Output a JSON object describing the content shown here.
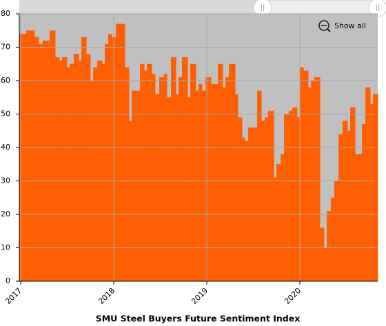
{
  "chart_data": {
    "type": "step-area",
    "title": "SMU Steel Buyers Future Sentiment Index",
    "reset_zoom_label": "Show all",
    "color": "#ff5f00",
    "plot_background": "#c0c0c0",
    "grid": true,
    "xlim": [
      2016.985,
      2020.837
    ],
    "xticks": [
      2017,
      2018,
      2019,
      2020
    ],
    "ylim": [
      0,
      80
    ],
    "yticks": [
      0,
      10,
      20,
      30,
      40,
      50,
      60,
      70,
      80
    ],
    "x": [
      2016.985,
      2017.059,
      2017.148,
      2017.193,
      2017.237,
      2017.311,
      2017.37,
      2017.415,
      2017.444,
      2017.496,
      2017.526,
      2017.57,
      2017.622,
      2017.652,
      2017.704,
      2017.748,
      2017.778,
      2017.822,
      2017.874,
      2017.904,
      2017.941,
      2017.978,
      2018.022,
      2018.119,
      2018.163,
      2018.193,
      2018.281,
      2018.326,
      2018.356,
      2018.407,
      2018.444,
      2018.489,
      2018.541,
      2018.57,
      2018.615,
      2018.667,
      2018.696,
      2018.733,
      2018.793,
      2018.822,
      2018.881,
      2018.911,
      2018.948,
      2018.985,
      2019.044,
      2019.119,
      2019.17,
      2019.2,
      2019.237,
      2019.304,
      2019.333,
      2019.378,
      2019.407,
      2019.444,
      2019.541,
      2019.585,
      2019.622,
      2019.659,
      2019.719,
      2019.748,
      2019.793,
      2019.83,
      2019.881,
      2019.919,
      2019.97,
      2020.0,
      2020.037,
      2020.089,
      2020.119,
      2020.156,
      2020.215,
      2020.259,
      2020.289,
      2020.333,
      2020.37,
      2020.415,
      2020.459,
      2020.511,
      2020.541,
      2020.593,
      2020.667,
      2020.704,
      2020.756,
      2020.785
    ],
    "values": [
      74,
      75,
      73,
      71,
      72,
      75,
      67,
      66,
      67,
      64,
      65,
      68,
      66,
      73,
      68,
      60,
      64,
      66,
      65,
      71,
      74,
      73,
      77,
      64,
      48,
      57,
      65,
      63,
      65,
      62,
      56,
      61,
      62,
      55,
      67,
      56,
      61,
      67,
      55,
      65,
      57,
      59,
      57,
      61,
      59,
      65,
      58,
      61,
      65,
      56,
      49,
      43,
      42,
      46,
      57,
      48,
      49,
      51,
      31,
      35,
      38,
      50,
      51,
      52,
      49,
      64,
      63,
      58,
      60,
      61,
      16,
      10,
      21,
      25,
      30,
      44,
      48,
      45,
      52,
      38,
      47,
      58,
      53,
      56
    ]
  }
}
